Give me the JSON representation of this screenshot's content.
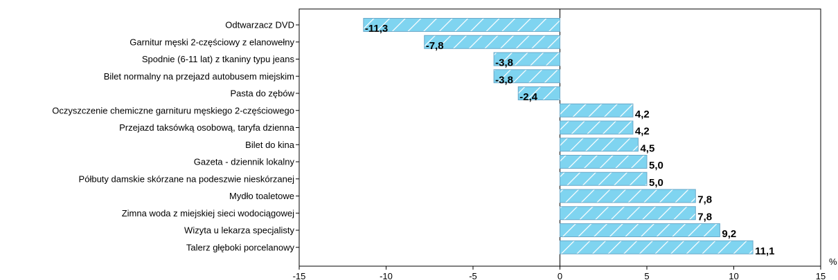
{
  "chart_data": {
    "type": "bar",
    "orientation": "horizontal",
    "categories": [
      "Odtwarzacz DVD",
      "Garnitur męski 2-częściowy z elanowełny",
      "Spodnie (6-11 lat) z tkaniny typu jeans",
      "Bilet normalny na przejazd autobusem miejskim",
      "Pasta do zębów",
      "Oczyszczenie chemiczne garnituru męskiego 2-częściowego",
      "Przejazd taksówką osobową, taryfa dzienna",
      "Bilet do kina",
      "Gazeta - dziennik lokalny",
      "Półbuty damskie skórzane na podeszwie nieskórzanej",
      "Mydło toaletowe",
      "Zimna woda z miejskiej sieci wodociągowej",
      "Wizyta u lekarza specjalisty",
      "Talerz głęboki porcelanowy"
    ],
    "values": [
      -11.3,
      -7.8,
      -3.8,
      -3.8,
      -2.4,
      4.2,
      4.2,
      4.5,
      5.0,
      5.0,
      7.8,
      7.8,
      9.2,
      11.1
    ],
    "value_labels": [
      "-11,3",
      "-7,8",
      "-3,8",
      "-3,8",
      "-2,4",
      "4,2",
      "4,2",
      "4,5",
      "5,0",
      "5,0",
      "7,8",
      "7,8",
      "9,2",
      "11,1"
    ],
    "xlim": [
      -15,
      15
    ],
    "x_ticks": [
      -15,
      -10,
      -5,
      0,
      5,
      10,
      15
    ],
    "x_tick_labels": [
      "-15",
      "-10",
      "-5",
      "0",
      "5",
      "10",
      "15"
    ],
    "xlabel": "%",
    "title": "",
    "grid": false,
    "bar_color": "#7fd4f0",
    "bar_stroke_color": "#6aa8c8",
    "hatch_color": "#ffffff"
  }
}
